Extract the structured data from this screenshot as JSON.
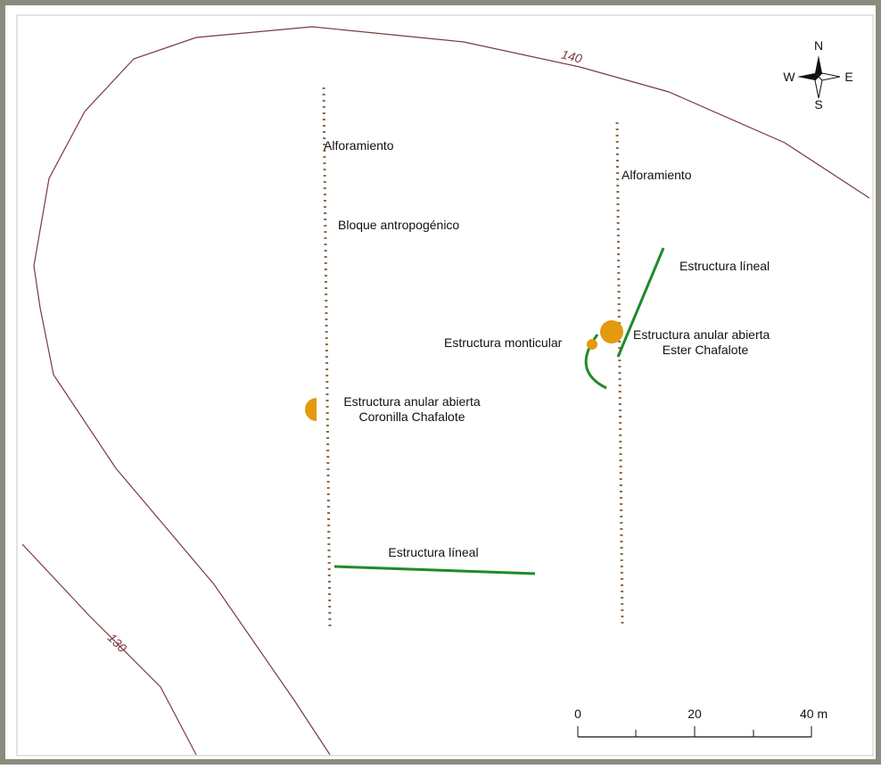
{
  "labels": [
    {
      "lines": [
        "Alforamiento"
      ]
    },
    {
      "lines": [
        "Bloque antropogénico"
      ]
    },
    {
      "lines": [
        "Alforamiento"
      ]
    },
    {
      "lines": [
        "Estructura líneal"
      ]
    },
    {
      "lines": [
        "Estructura monticular"
      ]
    },
    {
      "lines": [
        "Estructura anular abierta",
        "Ester Chafalote"
      ]
    },
    {
      "lines": [
        "Estructura anular abierta",
        "Coronilla Chafalote"
      ]
    },
    {
      "lines": [
        "Estructura líneal"
      ]
    }
  ],
  "contours": [
    "140",
    "130"
  ],
  "compass": {
    "n": "N",
    "s": "S",
    "e": "E",
    "w": "W"
  },
  "scale": [
    "0",
    "20",
    "40 m"
  ]
}
